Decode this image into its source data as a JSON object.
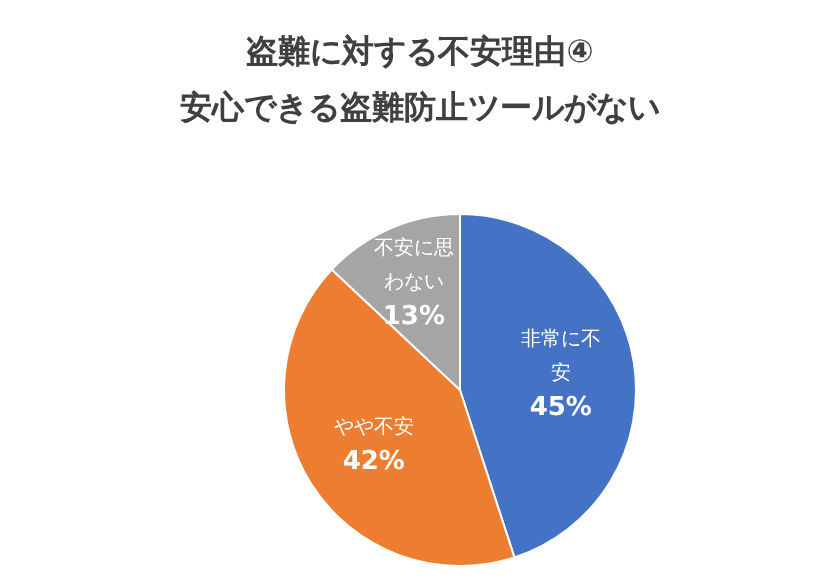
{
  "chart_data": {
    "type": "pie",
    "title": "盗難に対する不安理由④",
    "subtitle": "安心できる盗難防止ツールがない",
    "categories": [
      "非常に不安",
      "やや不安",
      "不安に思わない"
    ],
    "values": [
      45,
      42,
      13
    ],
    "colors": [
      "#4472c4",
      "#ed7d31",
      "#a5a5a5"
    ],
    "value_labels": [
      "45%",
      "42%",
      "13%"
    ],
    "legend": false
  }
}
